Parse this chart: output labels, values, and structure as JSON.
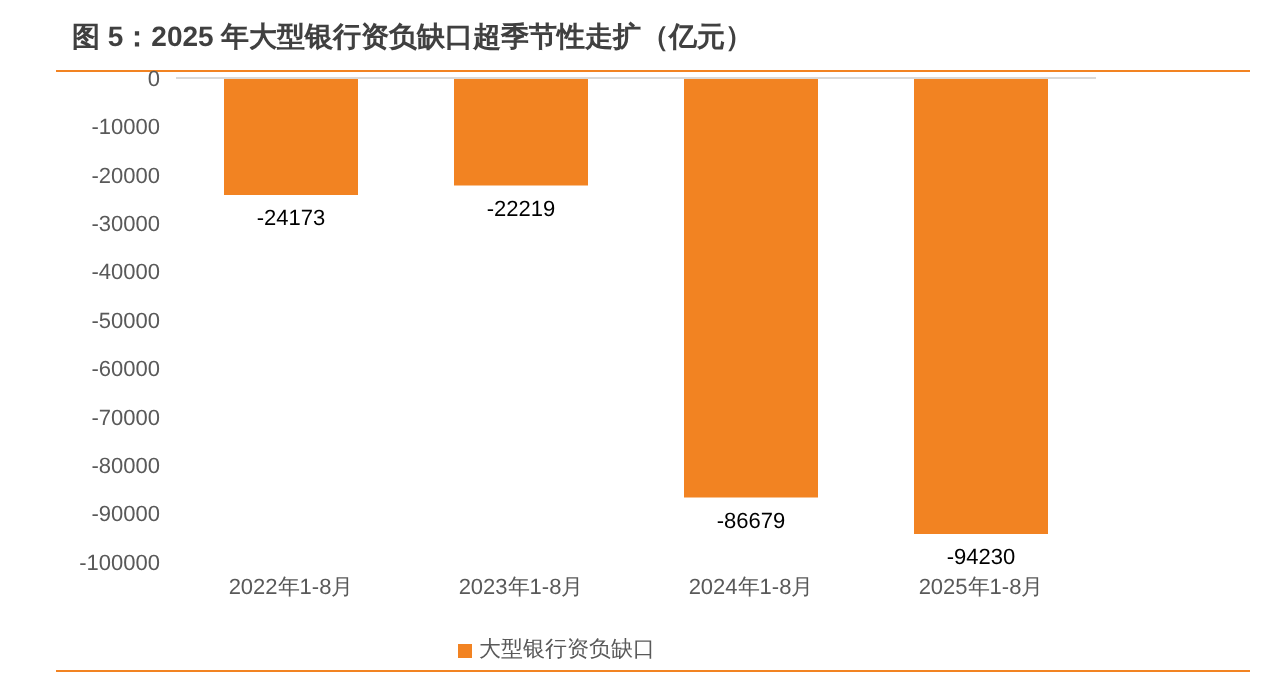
{
  "chart_data": {
    "type": "bar",
    "title": "图 5：2025 年大型银行资负缺口超季节性走扩（亿元）",
    "categories": [
      "2022年1-8月",
      "2023年1-8月",
      "2024年1-8月",
      "2025年1-8月"
    ],
    "series": [
      {
        "name": "大型银行资负缺口",
        "color": "#f28322",
        "values": [
          -24173,
          -22219,
          -86679,
          -94230
        ]
      }
    ],
    "ylim": [
      -100000,
      0
    ],
    "yticks": [
      0,
      -10000,
      -20000,
      -30000,
      -40000,
      -50000,
      -60000,
      -70000,
      -80000,
      -90000,
      -100000
    ],
    "grid": false,
    "legend": "bottom",
    "data_labels": true
  }
}
